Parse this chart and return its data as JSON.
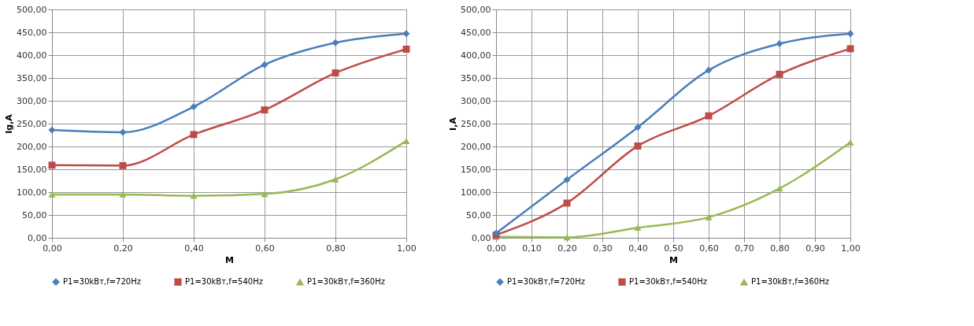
{
  "chart_data": [
    {
      "type": "line",
      "xlabel": "M",
      "ylabel": "Ig,A",
      "xlim": [
        0,
        1
      ],
      "ylim": [
        0,
        500
      ],
      "xticks": [
        {
          "value": 0,
          "label": "0,00"
        },
        {
          "value": 0.2,
          "label": "0,20"
        },
        {
          "value": 0.4,
          "label": "0,40"
        },
        {
          "value": 0.6,
          "label": "0,60"
        },
        {
          "value": 0.8,
          "label": "0,80"
        },
        {
          "value": 1,
          "label": "1,00"
        }
      ],
      "yticks": [
        {
          "value": 0,
          "label": "0,00"
        },
        {
          "value": 50,
          "label": "50,00"
        },
        {
          "value": 100,
          "label": "100,00"
        },
        {
          "value": 150,
          "label": "150,00"
        },
        {
          "value": 200,
          "label": "200,00"
        },
        {
          "value": 250,
          "label": "250,00"
        },
        {
          "value": 300,
          "label": "300,00"
        },
        {
          "value": 350,
          "label": "350,00"
        },
        {
          "value": 400,
          "label": "400,00"
        },
        {
          "value": 450,
          "label": "450,00"
        },
        {
          "value": 500,
          "label": "500,00"
        }
      ],
      "x": [
        0,
        0.2,
        0.4,
        0.6,
        0.8,
        1
      ],
      "grid": true,
      "legend": "bottom",
      "series": [
        {
          "name": "P1=30kВт,f=720Hz",
          "color": "#4a7ebb",
          "marker": "diamond",
          "values": [
            236,
            231,
            287,
            379,
            427,
            447
          ]
        },
        {
          "name": "P1=30kВт,f=540Hz",
          "color": "#be4b48",
          "marker": "square",
          "values": [
            159,
            158,
            226,
            280,
            361,
            413
          ]
        },
        {
          "name": "P1=30kВт,f=360Hz",
          "color": "#98b954",
          "marker": "triangle",
          "values": [
            95,
            95,
            92,
            96,
            128,
            212
          ]
        }
      ]
    },
    {
      "type": "line",
      "xlabel": "M",
      "ylabel": "I,A",
      "xlim": [
        0,
        1
      ],
      "ylim": [
        0,
        500
      ],
      "xticks": [
        {
          "value": 0,
          "label": "0,00"
        },
        {
          "value": 0.1,
          "label": "0,10"
        },
        {
          "value": 0.2,
          "label": "0,20"
        },
        {
          "value": 0.3,
          "label": "0,30"
        },
        {
          "value": 0.4,
          "label": "0,40"
        },
        {
          "value": 0.5,
          "label": "0,50"
        },
        {
          "value": 0.6,
          "label": "0,60"
        },
        {
          "value": 0.7,
          "label": "0,70"
        },
        {
          "value": 0.8,
          "label": "0,80"
        },
        {
          "value": 0.9,
          "label": "0,90"
        },
        {
          "value": 1,
          "label": "1,00"
        }
      ],
      "yticks": [
        {
          "value": 0,
          "label": "0,00"
        },
        {
          "value": 50,
          "label": "50,00"
        },
        {
          "value": 100,
          "label": "100,00"
        },
        {
          "value": 150,
          "label": "150,00"
        },
        {
          "value": 200,
          "label": "200,00"
        },
        {
          "value": 250,
          "label": "250,00"
        },
        {
          "value": 300,
          "label": "300,00"
        },
        {
          "value": 350,
          "label": "350,00"
        },
        {
          "value": 400,
          "label": "400,00"
        },
        {
          "value": 450,
          "label": "450,00"
        },
        {
          "value": 500,
          "label": "500,00"
        }
      ],
      "x": [
        0,
        0.2,
        0.4,
        0.6,
        0.8,
        1
      ],
      "grid": true,
      "legend": "bottom",
      "series": [
        {
          "name": "P1=30kВт,f=720Hz",
          "color": "#4a7ebb",
          "marker": "diamond",
          "values": [
            10,
            127,
            242,
            367,
            425,
            447
          ]
        },
        {
          "name": "P1=30kВт,f=540Hz",
          "color": "#be4b48",
          "marker": "square",
          "values": [
            6,
            76,
            201,
            267,
            358,
            414
          ]
        },
        {
          "name": "P1=30kВт,f=360Hz",
          "color": "#98b954",
          "marker": "triangle",
          "values": [
            2,
            1,
            22,
            45,
            108,
            209
          ]
        }
      ]
    }
  ]
}
